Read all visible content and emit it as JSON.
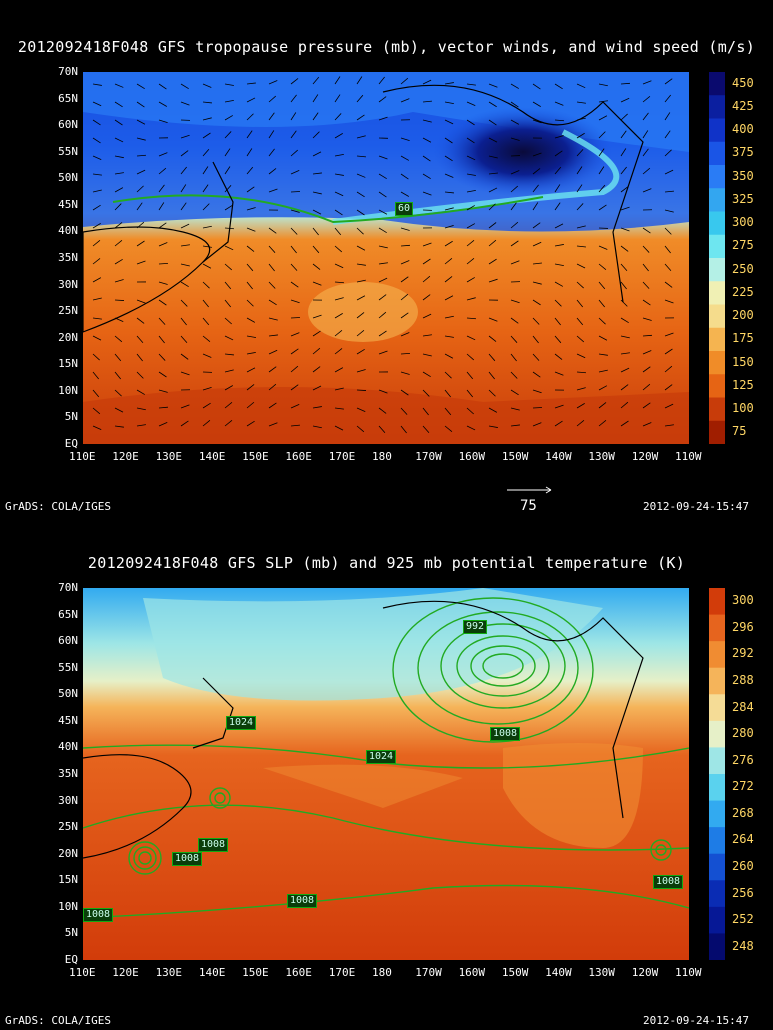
{
  "panel1": {
    "title": "2012092418F048 GFS tropopause pressure (mb), vector winds, and wind speed (m/s)",
    "colorbar_labels": [
      "450",
      "425",
      "400",
      "375",
      "350",
      "325",
      "300",
      "275",
      "250",
      "225",
      "200",
      "175",
      "150",
      "125",
      "100",
      "75"
    ],
    "colorbar_colors": [
      "#0a0a6e",
      "#0b1fa0",
      "#1033c8",
      "#1a55e6",
      "#2a7cf5",
      "#33a6f0",
      "#38c8ee",
      "#6ee6f0",
      "#b4f0e6",
      "#f0f0b4",
      "#f5dc8c",
      "#f5b450",
      "#f08c28",
      "#e66414",
      "#c83c0a",
      "#a01e00"
    ],
    "contour_label": "60",
    "vector_ref": "75"
  },
  "panel2": {
    "title": "2012092418F048 GFS SLP (mb) and 925 mb potential temperature (K)",
    "colorbar_labels": [
      "300",
      "296",
      "292",
      "288",
      "284",
      "280",
      "276",
      "272",
      "268",
      "264",
      "260",
      "256",
      "252",
      "248"
    ],
    "colorbar_colors": [
      "#d23c0a",
      "#e6641e",
      "#f08c32",
      "#f5b45a",
      "#f5dc96",
      "#e6f0c8",
      "#9ee6e6",
      "#5ad2ee",
      "#32aaf0",
      "#1e7ce6",
      "#1450d2",
      "#0a2cb4",
      "#061896",
      "#040a6e"
    ],
    "contour_labels": [
      "992",
      "1024",
      "1024",
      "1008",
      "1008",
      "1008",
      "1008",
      "1008",
      "1008"
    ]
  },
  "lat_labels": [
    "70N",
    "65N",
    "60N",
    "55N",
    "50N",
    "45N",
    "40N",
    "35N",
    "30N",
    "25N",
    "20N",
    "15N",
    "10N",
    "5N",
    "EQ"
  ],
  "lon_labels": [
    "110E",
    "120E",
    "130E",
    "140E",
    "150E",
    "160E",
    "170E",
    "180",
    "170W",
    "160W",
    "150W",
    "140W",
    "130W",
    "120W",
    "110W"
  ],
  "footer_left": "GrADS: COLA/IGES",
  "footer_right": "2012-09-24-15:47"
}
